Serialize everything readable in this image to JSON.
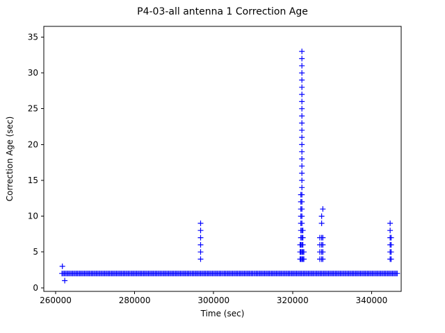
{
  "chart_data": {
    "type": "scatter",
    "title": "P4-03-all antenna 1 Correction Age",
    "xlabel": "Time (sec)",
    "ylabel": "Correction Age (sec)",
    "marker": "plus",
    "marker_color": "#0000ff",
    "axis_color": "#000000",
    "background_color": "#ffffff",
    "grid": false,
    "legend": null,
    "xlim": [
      257000,
      347500
    ],
    "ylim": [
      -0.5,
      36.5
    ],
    "x_ticks": [
      260000,
      280000,
      300000,
      320000,
      340000
    ],
    "y_ticks": [
      0,
      5,
      10,
      15,
      20,
      25,
      30,
      35
    ],
    "baseline_band": {
      "y": 2,
      "x_start": 261600,
      "x_end": 346600,
      "point_spacing": 300
    },
    "clusters": [
      {
        "x": 261700,
        "ys": [
          3
        ]
      },
      {
        "x": 262300,
        "ys": [
          1
        ]
      },
      {
        "x": 296700,
        "ys": [
          4,
          5,
          6,
          7,
          8,
          9
        ]
      },
      {
        "x": 321900,
        "ys": [
          4,
          5,
          6
        ]
      },
      {
        "x": 322100,
        "ys": [
          4,
          5,
          6,
          7,
          8,
          9,
          10,
          11,
          12,
          13
        ]
      },
      {
        "x": 322350,
        "ys": [
          4,
          5,
          6,
          7,
          8,
          9,
          10,
          11,
          12,
          13,
          14,
          15,
          16,
          17,
          18,
          19,
          20,
          21,
          22,
          23,
          24,
          25,
          26,
          27,
          28,
          29,
          30,
          31,
          32,
          33
        ]
      },
      {
        "x": 322600,
        "ys": [
          4,
          5,
          6,
          7,
          8
        ]
      },
      {
        "x": 322850,
        "ys": [
          4,
          5
        ]
      },
      {
        "x": 326900,
        "ys": [
          4,
          5,
          6,
          7
        ]
      },
      {
        "x": 327350,
        "ys": [
          4,
          5,
          6,
          7,
          9,
          10
        ]
      },
      {
        "x": 327650,
        "ys": [
          4,
          5,
          6,
          7,
          11
        ]
      },
      {
        "x": 344700,
        "ys": [
          4,
          5,
          6,
          7,
          8,
          9
        ]
      },
      {
        "x": 344950,
        "ys": [
          4,
          5,
          6,
          7
        ]
      }
    ]
  }
}
